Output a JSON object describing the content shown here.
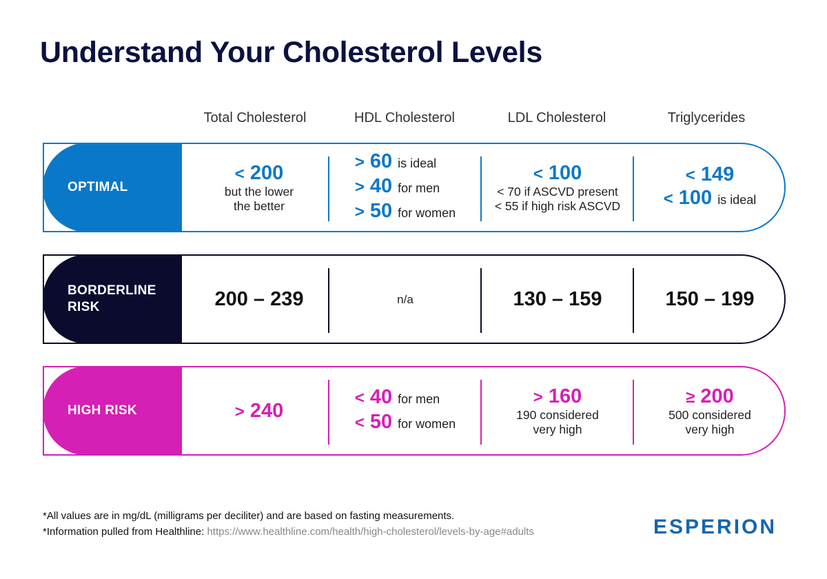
{
  "title": "Understand Your Cholesterol Levels",
  "columns": [
    "Total Cholesterol",
    "HDL Cholesterol",
    "LDL Cholesterol",
    "Triglycerides"
  ],
  "colors": {
    "optimal": "#0a78c8",
    "borderline": "#0b0b2e",
    "high": "#d61fb4"
  },
  "rows": {
    "optimal": {
      "label": "OPTIMAL",
      "total": {
        "value": "200",
        "symbol": "<",
        "note_line1": "but the lower",
        "note_line2": "the better"
      },
      "hdl": [
        {
          "symbol": ">",
          "value": "60",
          "text": "is ideal"
        },
        {
          "symbol": ">",
          "value": "40",
          "text": "for men"
        },
        {
          "symbol": ">",
          "value": "50",
          "text": "for women"
        }
      ],
      "ldl": {
        "symbol": "<",
        "value": "100",
        "note_line1": "< 70 if ASCVD present",
        "note_line2": "< 55 if high risk ASCVD"
      },
      "tri": [
        {
          "symbol": "<",
          "value": "149",
          "text": ""
        },
        {
          "symbol": "<",
          "value": "100",
          "text": "is ideal"
        }
      ]
    },
    "borderline": {
      "label_line1": "BORDERLINE",
      "label_line2": "RISK",
      "total": "200 – 239",
      "hdl": "n/a",
      "ldl": "130 – 159",
      "tri": "150 – 199"
    },
    "high": {
      "label": "HIGH RISK",
      "total": {
        "symbol": ">",
        "value": "240"
      },
      "hdl": [
        {
          "symbol": "<",
          "value": "40",
          "text": "for men"
        },
        {
          "symbol": "<",
          "value": "50",
          "text": "for women"
        }
      ],
      "ldl": {
        "symbol": ">",
        "value": "160",
        "note_line1": "190 considered",
        "note_line2": "very high"
      },
      "tri": {
        "symbol": "≥",
        "value": "200",
        "note_line1": "500 considered",
        "note_line2": "very high"
      }
    }
  },
  "footnotes": {
    "line1": "*All values are in mg/dL (milligrams per deciliter) and are based on fasting measurements.",
    "line2_prefix": "*Information pulled from Healthline:",
    "line2_link": "https://www.healthline.com/health/high-cholesterol/levels-by-age#adults"
  },
  "logo": "ESPERION"
}
